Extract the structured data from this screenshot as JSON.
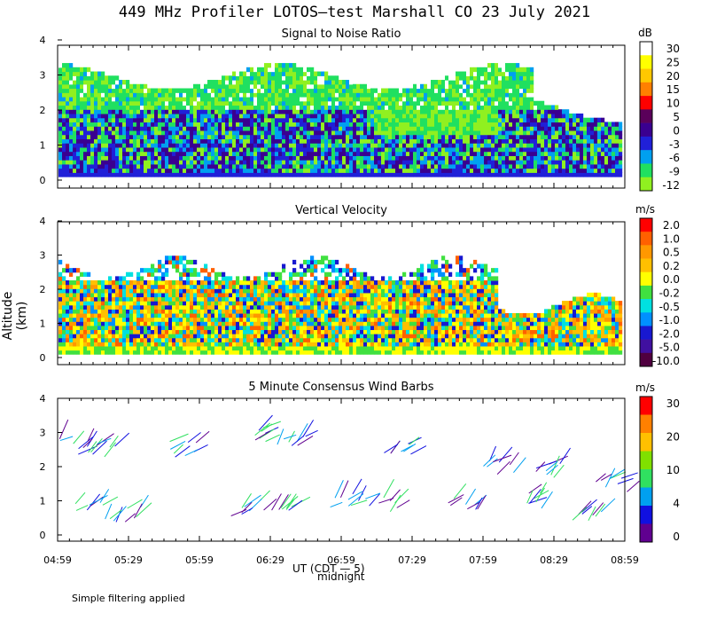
{
  "title": "449 MHz Profiler LOTOS—test Marshall CO 23 July 2021",
  "y_axis_label": "Altitude (km)",
  "x_axis_label": "UT (CDT — 5)",
  "midnight_label": "midnight",
  "footer_note": "Simple filtering applied",
  "colors": {
    "background": "#ffffff",
    "axis": "#000000"
  },
  "chart_data": [
    {
      "type": "heatmap",
      "title": "Signal to Noise Ratio",
      "ylim": [
        0,
        4
      ],
      "y_ticks": [
        "0",
        "1",
        "2",
        "3",
        "4"
      ],
      "x_ticks": [
        "04:59",
        "05:29",
        "05:59",
        "06:29",
        "06:59",
        "07:29",
        "07:59",
        "08:29",
        "08:59"
      ],
      "colorbar": {
        "unit": "dB",
        "labels": [
          "30",
          "25",
          "20",
          "15",
          "10",
          "5",
          "0",
          "-3",
          "-6",
          "-9",
          "-12"
        ],
        "colors": [
          "#ffffff",
          "#ffff00",
          "#ffc800",
          "#ff8000",
          "#ff0000",
          "#5a005a",
          "#3a0090",
          "#2020d8",
          "#00a0f0",
          "#20e060",
          "#90f020"
        ]
      }
    },
    {
      "type": "heatmap",
      "title": "Vertical Velocity",
      "ylim": [
        0,
        4
      ],
      "y_ticks": [
        "0",
        "1",
        "2",
        "3",
        "4"
      ],
      "x_ticks": [
        "04:59",
        "05:29",
        "05:59",
        "06:29",
        "06:59",
        "07:29",
        "07:59",
        "08:29",
        "08:59"
      ],
      "colorbar": {
        "unit": "m/s",
        "labels": [
          "2.0",
          "1.0",
          "0.5",
          "0.2",
          "0.0",
          "-0.2",
          "-0.5",
          "-1.0",
          "-2.0",
          "-5.0",
          "-10.0"
        ],
        "colors": [
          "#ff0000",
          "#ff6000",
          "#ff9800",
          "#ffc000",
          "#ffff00",
          "#40e040",
          "#00e0e0",
          "#0090ff",
          "#1818d0",
          "#4010a0",
          "#500040"
        ]
      }
    },
    {
      "type": "scatter",
      "title": "5 Minute Consensus Wind Barbs",
      "ylim": [
        0,
        4
      ],
      "y_ticks": [
        "0",
        "1",
        "2",
        "3",
        "4"
      ],
      "x_ticks": [
        "04:59",
        "05:29",
        "05:59",
        "06:29",
        "06:59",
        "07:29",
        "07:59",
        "08:29",
        "08:59"
      ],
      "colorbar": {
        "unit": "m/s",
        "labels": [
          "30",
          "20",
          "10",
          "4",
          "0"
        ],
        "colors": [
          "#ff0000",
          "#ff8000",
          "#ffc000",
          "#80e000",
          "#30e060",
          "#00a0f0",
          "#1010e0",
          "#600090"
        ]
      }
    }
  ]
}
